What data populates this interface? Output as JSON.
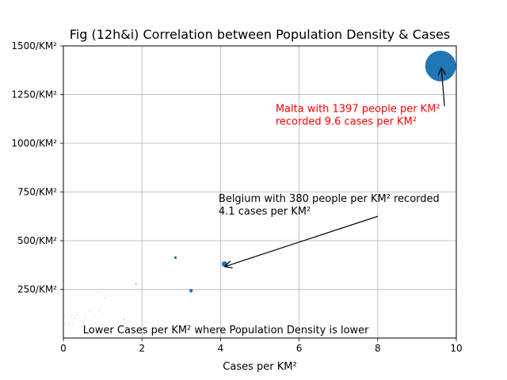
{
  "chart_data": {
    "type": "scatter",
    "title": "Fig (12h&i) Correlation between Population Density & Cases",
    "xlabel": "Cases per KM²",
    "ylabel": "",
    "xlim": [
      0,
      10
    ],
    "ylim": [
      0,
      1500
    ],
    "x_ticks": [
      0,
      2,
      4,
      6,
      8,
      10
    ],
    "x_tick_labels": [
      "0",
      "2",
      "4",
      "6",
      "8",
      "10"
    ],
    "y_ticks": [
      250,
      500,
      750,
      1000,
      1250,
      1500
    ],
    "y_tick_labels": [
      "250/KM²",
      "500/KM²",
      "750/KM²",
      "1000/KM²",
      "1250/KM²",
      "1500/KM²"
    ],
    "grid": true,
    "marker_color": "#1f77b4",
    "points": [
      {
        "x": 9.6,
        "y": 1397,
        "size": 9.6
      },
      {
        "x": 4.1,
        "y": 380,
        "size": 4.1
      },
      {
        "x": 3.25,
        "y": 243,
        "size": 3.25
      },
      {
        "x": 2.85,
        "y": 413,
        "size": 2.85
      },
      {
        "x": 1.85,
        "y": 280,
        "size": 1.85
      },
      {
        "x": 1.55,
        "y": 95,
        "size": 1.55
      },
      {
        "x": 1.05,
        "y": 205,
        "size": 1.05
      },
      {
        "x": 1.0,
        "y": 125,
        "size": 1.0
      },
      {
        "x": 0.9,
        "y": 140,
        "size": 0.9
      },
      {
        "x": 0.85,
        "y": 240,
        "size": 0.85
      },
      {
        "x": 0.8,
        "y": 110,
        "size": 0.8
      },
      {
        "x": 0.65,
        "y": 140,
        "size": 0.65
      },
      {
        "x": 0.55,
        "y": 100,
        "size": 0.55
      },
      {
        "x": 0.5,
        "y": 80,
        "size": 0.5
      },
      {
        "x": 0.45,
        "y": 65,
        "size": 0.45
      },
      {
        "x": 0.35,
        "y": 120,
        "size": 0.35
      },
      {
        "x": 0.3,
        "y": 100,
        "size": 0.3
      },
      {
        "x": 0.25,
        "y": 80,
        "size": 0.25
      },
      {
        "x": 0.2,
        "y": 110,
        "size": 0.2
      },
      {
        "x": 0.15,
        "y": 70,
        "size": 0.15
      }
    ],
    "annotations": [
      {
        "lines": [
          "Malta with 1397 people per KM²",
          "recorded 9.6 cases per KM²"
        ],
        "color": "#ff0000",
        "text_x": 5.4,
        "text_y": 1160,
        "arrow_from": [
          9.7,
          1190
        ],
        "arrow_to": [
          9.6,
          1397
        ]
      },
      {
        "lines": [
          "Belgium with 380 people per KM² recorded",
          "4.1 cases per KM²"
        ],
        "color": "#000000",
        "text_x": 3.95,
        "text_y": 700,
        "arrow_from": [
          8.0,
          625
        ],
        "arrow_to": [
          4.1,
          380
        ]
      },
      {
        "lines": [
          "Lower Cases per KM² where Population Density is lower"
        ],
        "color": "#000000",
        "text_x": 0.5,
        "text_y": 25
      }
    ]
  }
}
